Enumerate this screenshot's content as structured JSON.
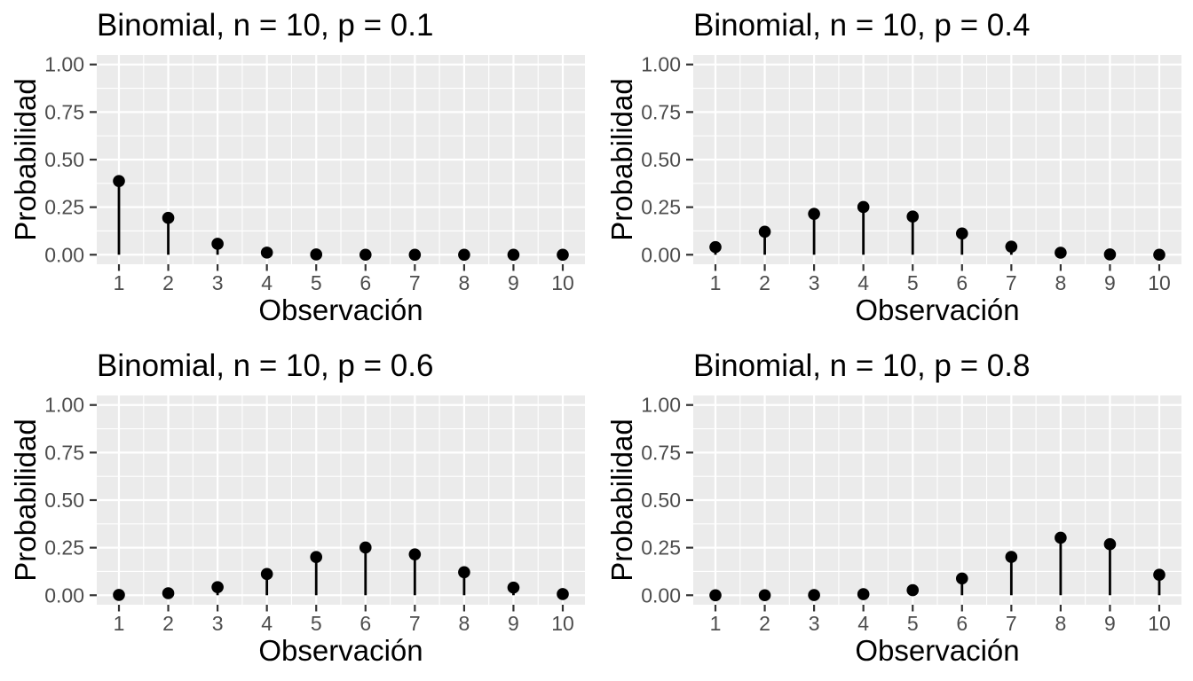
{
  "page": {
    "background": "#FFFFFF",
    "layout": "2x2 grid of stem plots"
  },
  "style": {
    "panel_bg": "#EBEBEB",
    "grid_color": "#FFFFFF",
    "stem_color": "#000000",
    "point_color": "#000000",
    "tick_mark_color": "#333333",
    "tick_label_color": "#4D4D4D",
    "title_color": "#000000"
  },
  "chart_data": [
    {
      "type": "lollipop",
      "title": "Binomial, n = 10, p = 0.1",
      "xlabel": "Observación",
      "ylabel": "Probabilidad",
      "x": [
        1,
        2,
        3,
        4,
        5,
        6,
        7,
        8,
        9,
        10
      ],
      "values": [
        0.3874,
        0.1937,
        0.0574,
        0.0112,
        0.0015,
        0.0001,
        0.0,
        0.0,
        0.0,
        0.0
      ],
      "ylim": [
        0,
        1
      ],
      "ytick_values": [
        0,
        0.25,
        0.5,
        0.75,
        1
      ],
      "ytick_labels": [
        "0.00",
        "0.25",
        "0.50",
        "0.75",
        "1.00"
      ],
      "y_minor_breaks": [
        0.125,
        0.375,
        0.625,
        0.875
      ],
      "x_minor_breaks": [
        1.5,
        2.5,
        3.5,
        4.5,
        5.5,
        6.5,
        7.5,
        8.5,
        9.5
      ],
      "grid": "white major+minor on gray panel",
      "legend": "none"
    },
    {
      "type": "lollipop",
      "title": "Binomial, n = 10, p = 0.4",
      "xlabel": "Observación",
      "ylabel": "Probabilidad",
      "x": [
        1,
        2,
        3,
        4,
        5,
        6,
        7,
        8,
        9,
        10
      ],
      "values": [
        0.0403,
        0.1209,
        0.215,
        0.2508,
        0.2007,
        0.1115,
        0.0425,
        0.0106,
        0.0016,
        0.0001
      ],
      "ylim": [
        0,
        1
      ],
      "ytick_values": [
        0,
        0.25,
        0.5,
        0.75,
        1
      ],
      "ytick_labels": [
        "0.00",
        "0.25",
        "0.50",
        "0.75",
        "1.00"
      ],
      "y_minor_breaks": [
        0.125,
        0.375,
        0.625,
        0.875
      ],
      "x_minor_breaks": [
        1.5,
        2.5,
        3.5,
        4.5,
        5.5,
        6.5,
        7.5,
        8.5,
        9.5
      ],
      "grid": "white major+minor on gray panel",
      "legend": "none"
    },
    {
      "type": "lollipop",
      "title": "Binomial, n = 10, p = 0.6",
      "xlabel": "Observación",
      "ylabel": "Probabilidad",
      "x": [
        1,
        2,
        3,
        4,
        5,
        6,
        7,
        8,
        9,
        10
      ],
      "values": [
        0.0016,
        0.0106,
        0.0425,
        0.1115,
        0.2007,
        0.2508,
        0.215,
        0.1209,
        0.0403,
        0.006
      ],
      "ylim": [
        0,
        1
      ],
      "ytick_values": [
        0,
        0.25,
        0.5,
        0.75,
        1
      ],
      "ytick_labels": [
        "0.00",
        "0.25",
        "0.50",
        "0.75",
        "1.00"
      ],
      "y_minor_breaks": [
        0.125,
        0.375,
        0.625,
        0.875
      ],
      "x_minor_breaks": [
        1.5,
        2.5,
        3.5,
        4.5,
        5.5,
        6.5,
        7.5,
        8.5,
        9.5
      ],
      "grid": "white major+minor on gray panel",
      "legend": "none"
    },
    {
      "type": "lollipop",
      "title": "Binomial, n = 10, p = 0.8",
      "xlabel": "Observación",
      "ylabel": "Probabilidad",
      "x": [
        1,
        2,
        3,
        4,
        5,
        6,
        7,
        8,
        9,
        10
      ],
      "values": [
        0.0,
        0.0001,
        0.0008,
        0.0055,
        0.0264,
        0.0881,
        0.2013,
        0.302,
        0.2684,
        0.1074
      ],
      "ylim": [
        0,
        1
      ],
      "ytick_values": [
        0,
        0.25,
        0.5,
        0.75,
        1
      ],
      "ytick_labels": [
        "0.00",
        "0.25",
        "0.50",
        "0.75",
        "1.00"
      ],
      "y_minor_breaks": [
        0.125,
        0.375,
        0.625,
        0.875
      ],
      "x_minor_breaks": [
        1.5,
        2.5,
        3.5,
        4.5,
        5.5,
        6.5,
        7.5,
        8.5,
        9.5
      ],
      "grid": "white major+minor on gray panel",
      "legend": "none"
    }
  ]
}
